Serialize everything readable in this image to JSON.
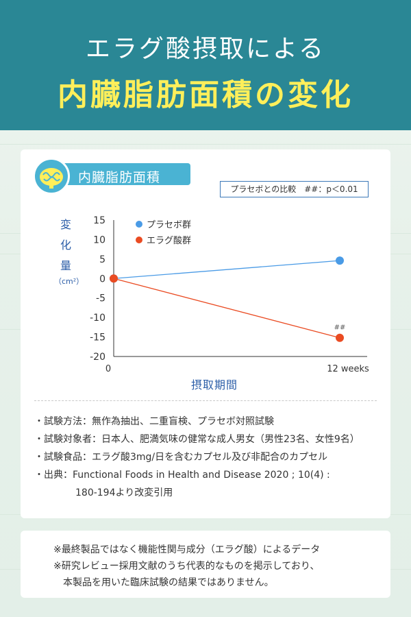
{
  "header": {
    "title_line1": "エラグ酸摂取による",
    "title_line2": "内臓脂肪面積の変化",
    "bg_color": "#2a8795",
    "title2_color": "#ffef5a"
  },
  "card": {
    "tag_label": "内臓脂肪面積",
    "tag_icon": "intestine-icon",
    "comparison_note": "プラセボとの比較　##：p＜0.01"
  },
  "chart_data": {
    "type": "line",
    "ylabel_chars": [
      "変",
      "化",
      "量"
    ],
    "ylabel_unit": "（cm²）",
    "xlabel": "摂取期間",
    "x_ticks": [
      "0",
      "12 weeks"
    ],
    "y_ticks": [
      "15",
      "10",
      "5",
      "0",
      "-5",
      "-10",
      "-15",
      "-20"
    ],
    "ylim": [
      -20,
      15
    ],
    "series": [
      {
        "name": "プラセボ群",
        "color": "#4a9be6",
        "values": [
          0,
          4.6
        ]
      },
      {
        "name": "エラグ酸群",
        "color": "#ea4b22",
        "values": [
          0,
          -15.2
        ],
        "annotation": "##"
      }
    ]
  },
  "notes": [
    "・試験方法：無作為抽出、二重盲検、プラセボ対照試験",
    "・試験対象者：日本人、肥満気味の健常な成人男女（男性23名、女性9名）",
    "・試験食品：エラグ酸3mg/日を含むカプセル及び非配合のカプセル",
    "・出典：Functional Foods in Health and Disease 2020 ; 10(4) :",
    "180-194より改変引用"
  ],
  "footer": {
    "line1": "※最終製品ではなく機能性関与成分（エラグ酸）によるデータ",
    "line2": "※研究レビュー採用文献のうち代表的なものを掲示しており、",
    "line3": "本製品を用いた臨床試験の結果ではありません。"
  }
}
